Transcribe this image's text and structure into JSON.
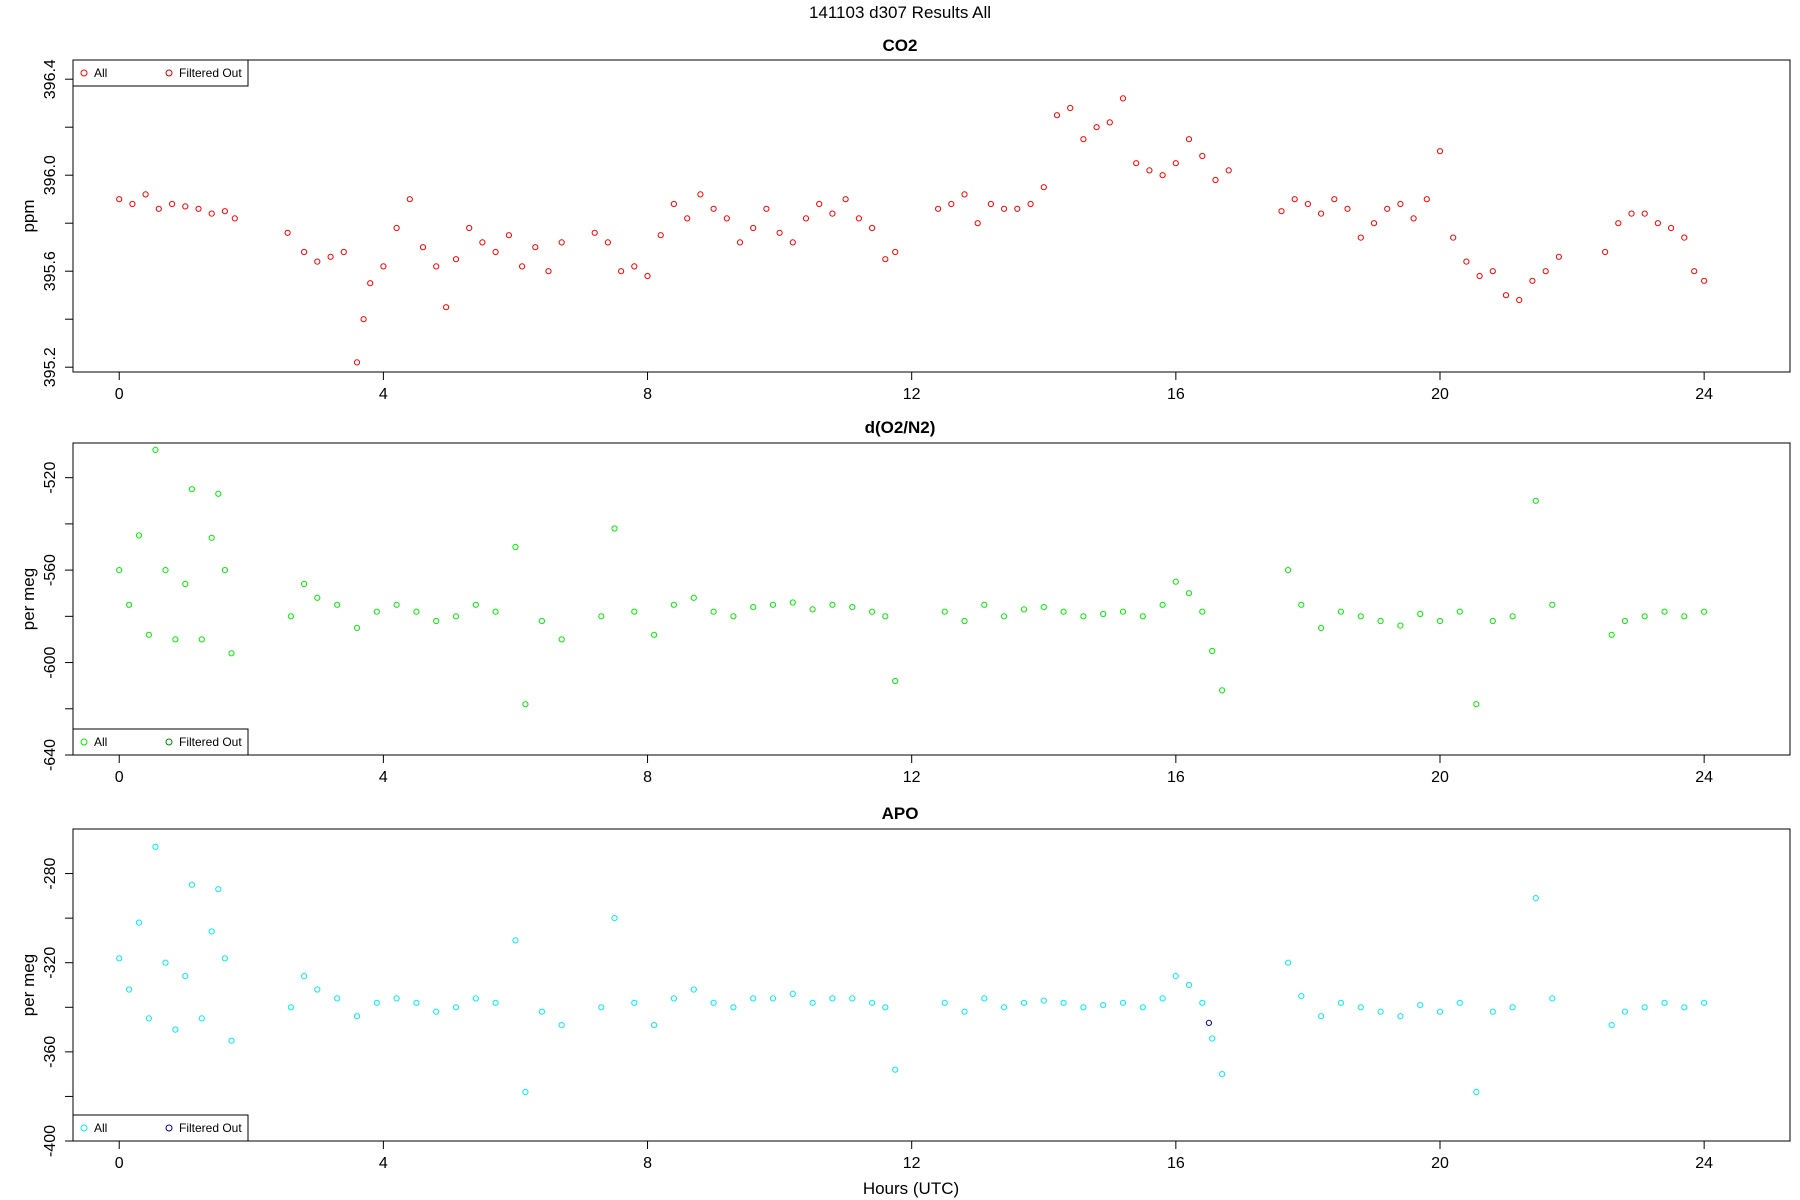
{
  "figure": {
    "title": "141103   d307   Results All",
    "xlabel": "Hours (UTC)",
    "x_ticks": [
      "0",
      "4",
      "8",
      "12",
      "16",
      "20",
      "24"
    ]
  },
  "chart_data": [
    {
      "type": "scatter",
      "title": "CO2",
      "xlabel": "Hours (UTC)",
      "ylabel": "ppm",
      "xlim": [
        -0.7,
        25.3
      ],
      "ylim": [
        395.18,
        396.48
      ],
      "x_ticks": [
        0,
        4,
        8,
        12,
        16,
        20,
        24
      ],
      "y_ticks": [
        395.2,
        395.6,
        396.0,
        396.4
      ],
      "y_tick_labels": [
        "395.2",
        "395.6",
        "396.0",
        "396.4"
      ],
      "legend": {
        "placement": "top-left",
        "entries": [
          "All",
          "Filtered Out"
        ]
      },
      "colors": {
        "all": "#ff0000",
        "filtered": "#cc0000"
      },
      "grid": false,
      "series": [
        {
          "name": "All",
          "x": [
            0.0,
            0.2,
            0.4,
            0.6,
            0.8,
            1.0,
            1.2,
            1.4,
            1.6,
            1.75,
            2.55,
            2.8,
            3.0,
            3.2,
            3.4,
            3.6,
            3.7,
            3.8,
            4.0,
            4.2,
            4.4,
            4.6,
            4.8,
            4.95,
            5.1,
            5.3,
            5.5,
            5.7,
            5.9,
            6.1,
            6.3,
            6.5,
            6.7,
            7.2,
            7.4,
            7.6,
            7.8,
            8.0,
            8.2,
            8.4,
            8.6,
            8.8,
            9.0,
            9.2,
            9.4,
            9.6,
            9.8,
            10.0,
            10.2,
            10.4,
            10.6,
            10.8,
            11.0,
            11.2,
            11.4,
            11.6,
            11.75,
            12.4,
            12.6,
            12.8,
            13.0,
            13.2,
            13.4,
            13.6,
            13.8,
            14.0,
            14.2,
            14.4,
            14.6,
            14.8,
            15.0,
            15.2,
            15.4,
            15.6,
            15.8,
            16.0,
            16.2,
            16.4,
            16.6,
            16.8,
            17.6,
            17.8,
            18.0,
            18.2,
            18.4,
            18.6,
            18.8,
            19.0,
            19.2,
            19.4,
            19.6,
            19.8,
            20.0,
            20.2,
            20.4,
            20.6,
            20.8,
            21.0,
            21.2,
            21.4,
            21.6,
            21.8,
            22.5,
            22.7,
            22.9,
            23.1,
            23.3,
            23.5,
            23.7,
            23.85,
            24.0
          ],
          "y": [
            395.9,
            395.88,
            395.92,
            395.86,
            395.88,
            395.87,
            395.86,
            395.84,
            395.85,
            395.82,
            395.76,
            395.68,
            395.64,
            395.66,
            395.68,
            395.22,
            395.4,
            395.55,
            395.62,
            395.78,
            395.9,
            395.7,
            395.62,
            395.45,
            395.65,
            395.78,
            395.72,
            395.68,
            395.75,
            395.62,
            395.7,
            395.6,
            395.72,
            395.76,
            395.72,
            395.6,
            395.62,
            395.58,
            395.75,
            395.88,
            395.82,
            395.92,
            395.86,
            395.82,
            395.72,
            395.78,
            395.86,
            395.76,
            395.72,
            395.82,
            395.88,
            395.84,
            395.9,
            395.82,
            395.78,
            395.65,
            395.68,
            395.86,
            395.88,
            395.92,
            395.8,
            395.88,
            395.86,
            395.86,
            395.88,
            395.95,
            396.25,
            396.28,
            396.15,
            396.2,
            396.22,
            396.32,
            396.05,
            396.02,
            396.0,
            396.05,
            396.15,
            396.08,
            395.98,
            396.02,
            395.85,
            395.9,
            395.88,
            395.84,
            395.9,
            395.86,
            395.74,
            395.8,
            395.86,
            395.88,
            395.82,
            395.9,
            396.1,
            395.74,
            395.64,
            395.58,
            395.6,
            395.5,
            395.48,
            395.56,
            395.6,
            395.66,
            395.68,
            395.8,
            395.84,
            395.84,
            395.8,
            395.78,
            395.74,
            395.6,
            395.56
          ]
        },
        {
          "name": "Filtered Out",
          "x": [],
          "y": []
        }
      ]
    },
    {
      "type": "scatter",
      "title": "d(O2/N2)",
      "xlabel": "Hours (UTC)",
      "ylabel": "per meg",
      "xlim": [
        -0.7,
        25.3
      ],
      "ylim": [
        -640,
        -505
      ],
      "x_ticks": [
        0,
        4,
        8,
        12,
        16,
        20,
        24
      ],
      "y_ticks": [
        -640,
        -600,
        -560,
        -520
      ],
      "y_tick_labels": [
        "-640",
        "-600",
        "-560",
        "-520"
      ],
      "legend": {
        "placement": "bottom-left",
        "entries": [
          "All",
          "Filtered Out"
        ]
      },
      "colors": {
        "all": "#00ee00",
        "filtered": "#008800"
      },
      "grid": false,
      "series": [
        {
          "name": "All",
          "x": [
            0.0,
            0.15,
            0.3,
            0.45,
            0.55,
            0.7,
            0.85,
            1.0,
            1.1,
            1.25,
            1.4,
            1.5,
            1.6,
            1.7,
            2.6,
            2.8,
            3.0,
            3.3,
            3.6,
            3.9,
            4.2,
            4.5,
            4.8,
            5.1,
            5.4,
            5.7,
            6.0,
            6.15,
            6.4,
            6.7,
            7.3,
            7.5,
            7.8,
            8.1,
            8.4,
            8.7,
            9.0,
            9.3,
            9.6,
            9.9,
            10.2,
            10.5,
            10.8,
            11.1,
            11.4,
            11.6,
            11.75,
            12.5,
            12.8,
            13.1,
            13.4,
            13.7,
            14.0,
            14.3,
            14.6,
            14.9,
            15.2,
            15.5,
            15.8,
            16.0,
            16.2,
            16.4,
            16.55,
            16.7,
            17.7,
            17.9,
            18.2,
            18.5,
            18.8,
            19.1,
            19.4,
            19.7,
            20.0,
            20.3,
            20.55,
            20.8,
            21.1,
            21.45,
            21.7,
            22.6,
            22.8,
            23.1,
            23.4,
            23.7,
            24.0
          ],
          "y": [
            -560,
            -575,
            -545,
            -588,
            -508,
            -560,
            -590,
            -566,
            -525,
            -590,
            -546,
            -527,
            -560,
            -596,
            -580,
            -566,
            -572,
            -575,
            -585,
            -578,
            -575,
            -578,
            -582,
            -580,
            -575,
            -578,
            -550,
            -618,
            -582,
            -590,
            -580,
            -542,
            -578,
            -588,
            -575,
            -572,
            -578,
            -580,
            -576,
            -575,
            -574,
            -577,
            -575,
            -576,
            -578,
            -580,
            -608,
            -578,
            -582,
            -575,
            -580,
            -577,
            -576,
            -578,
            -580,
            -579,
            -578,
            -580,
            -575,
            -565,
            -570,
            -578,
            -595,
            -612,
            -560,
            -575,
            -585,
            -578,
            -580,
            -582,
            -584,
            -579,
            -582,
            -578,
            -618,
            -582,
            -580,
            -530,
            -575,
            -588,
            -582,
            -580,
            -578,
            -580,
            -578
          ]
        },
        {
          "name": "Filtered Out",
          "x": [],
          "y": []
        }
      ]
    },
    {
      "type": "scatter",
      "title": "APO",
      "xlabel": "Hours (UTC)",
      "ylabel": "per meg",
      "xlim": [
        -0.7,
        25.3
      ],
      "ylim": [
        -400,
        -260
      ],
      "x_ticks": [
        0,
        4,
        8,
        12,
        16,
        20,
        24
      ],
      "y_ticks": [
        -400,
        -360,
        -320,
        -280
      ],
      "y_tick_labels": [
        "-400",
        "-360",
        "-320",
        "-280"
      ],
      "legend": {
        "placement": "bottom-left",
        "entries": [
          "All",
          "Filtered Out"
        ]
      },
      "colors": {
        "all": "#00eeee",
        "filtered": "#000088"
      },
      "grid": false,
      "series": [
        {
          "name": "All",
          "x": [
            0.0,
            0.15,
            0.3,
            0.45,
            0.55,
            0.7,
            0.85,
            1.0,
            1.1,
            1.25,
            1.4,
            1.5,
            1.6,
            1.7,
            2.6,
            2.8,
            3.0,
            3.3,
            3.6,
            3.9,
            4.2,
            4.5,
            4.8,
            5.1,
            5.4,
            5.7,
            6.0,
            6.15,
            6.4,
            6.7,
            7.3,
            7.5,
            7.8,
            8.1,
            8.4,
            8.7,
            9.0,
            9.3,
            9.6,
            9.9,
            10.2,
            10.5,
            10.8,
            11.1,
            11.4,
            11.6,
            11.75,
            12.5,
            12.8,
            13.1,
            13.4,
            13.7,
            14.0,
            14.3,
            14.6,
            14.9,
            15.2,
            15.5,
            15.8,
            16.0,
            16.2,
            16.4,
            16.55,
            16.7,
            17.7,
            17.9,
            18.2,
            18.5,
            18.8,
            19.1,
            19.4,
            19.7,
            20.0,
            20.3,
            20.55,
            20.8,
            21.1,
            21.45,
            21.7,
            22.6,
            22.8,
            23.1,
            23.4,
            23.7,
            24.0
          ],
          "y": [
            -318,
            -332,
            -302,
            -345,
            -268,
            -320,
            -350,
            -326,
            -285,
            -345,
            -306,
            -287,
            -318,
            -355,
            -340,
            -326,
            -332,
            -336,
            -344,
            -338,
            -336,
            -338,
            -342,
            -340,
            -336,
            -338,
            -310,
            -378,
            -342,
            -348,
            -340,
            -300,
            -338,
            -348,
            -336,
            -332,
            -338,
            -340,
            -336,
            -336,
            -334,
            -338,
            -336,
            -336,
            -338,
            -340,
            -368,
            -338,
            -342,
            -336,
            -340,
            -338,
            -337,
            -338,
            -340,
            -339,
            -338,
            -340,
            -336,
            -326,
            -330,
            -338,
            -354,
            -370,
            -320,
            -335,
            -344,
            -338,
            -340,
            -342,
            -344,
            -339,
            -342,
            -338,
            -378,
            -342,
            -340,
            -291,
            -336,
            -348,
            -342,
            -340,
            -338,
            -340,
            -338
          ]
        },
        {
          "name": "Filtered Out",
          "x": [
            16.5
          ],
          "y": [
            -347
          ]
        }
      ]
    }
  ]
}
